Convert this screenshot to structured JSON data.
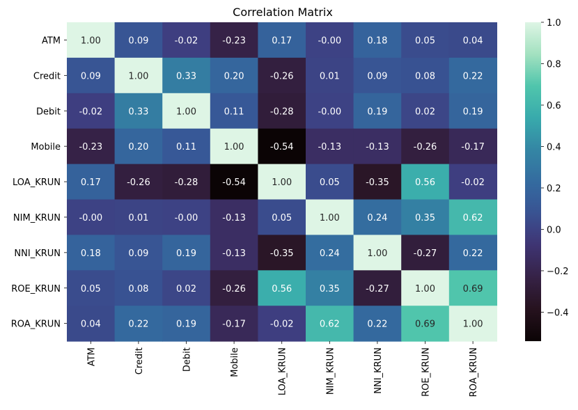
{
  "chart_data": {
    "type": "heatmap",
    "title": "Correlation Matrix",
    "xlabel": "",
    "ylabel": "",
    "labels": [
      "ATM",
      "Credit",
      "Debit",
      "Mobile",
      "LOA_KRUN",
      "NIM_KRUN",
      "NNI_KRUN",
      "ROE_KRUN",
      "ROA_KRUN"
    ],
    "matrix": [
      [
        1.0,
        0.09,
        -0.02,
        -0.23,
        0.17,
        -0.0,
        0.18,
        0.05,
        0.04
      ],
      [
        0.09,
        1.0,
        0.33,
        0.2,
        -0.26,
        0.01,
        0.09,
        0.08,
        0.22
      ],
      [
        -0.02,
        0.33,
        1.0,
        0.11,
        -0.28,
        -0.0,
        0.19,
        0.02,
        0.19
      ],
      [
        -0.23,
        0.2,
        0.11,
        1.0,
        -0.54,
        -0.13,
        -0.13,
        -0.26,
        -0.17
      ],
      [
        0.17,
        -0.26,
        -0.28,
        -0.54,
        1.0,
        0.05,
        -0.35,
        0.56,
        -0.02
      ],
      [
        -0.0,
        0.01,
        -0.0,
        -0.13,
        0.05,
        1.0,
        0.24,
        0.35,
        0.62
      ],
      [
        0.18,
        0.09,
        0.19,
        -0.13,
        -0.35,
        0.24,
        1.0,
        -0.27,
        0.22
      ],
      [
        0.05,
        0.08,
        0.02,
        -0.26,
        0.56,
        0.35,
        -0.27,
        1.0,
        0.69
      ],
      [
        0.04,
        0.22,
        0.19,
        -0.17,
        -0.02,
        0.62,
        0.22,
        0.69,
        1.0
      ]
    ],
    "value_format": "2 decimals",
    "colormap": "mako",
    "colorbar": {
      "range": [
        -0.54,
        1.0
      ],
      "ticks": [
        1.0,
        0.8,
        0.6,
        0.4,
        0.2,
        0.0,
        -0.2,
        -0.4
      ],
      "tick_labels": [
        "1.0",
        "0.8",
        "0.6",
        "0.4",
        "0.2",
        "0.0",
        "−0.2",
        "−0.4"
      ]
    },
    "grid": false,
    "legend": "colorbar-right"
  }
}
